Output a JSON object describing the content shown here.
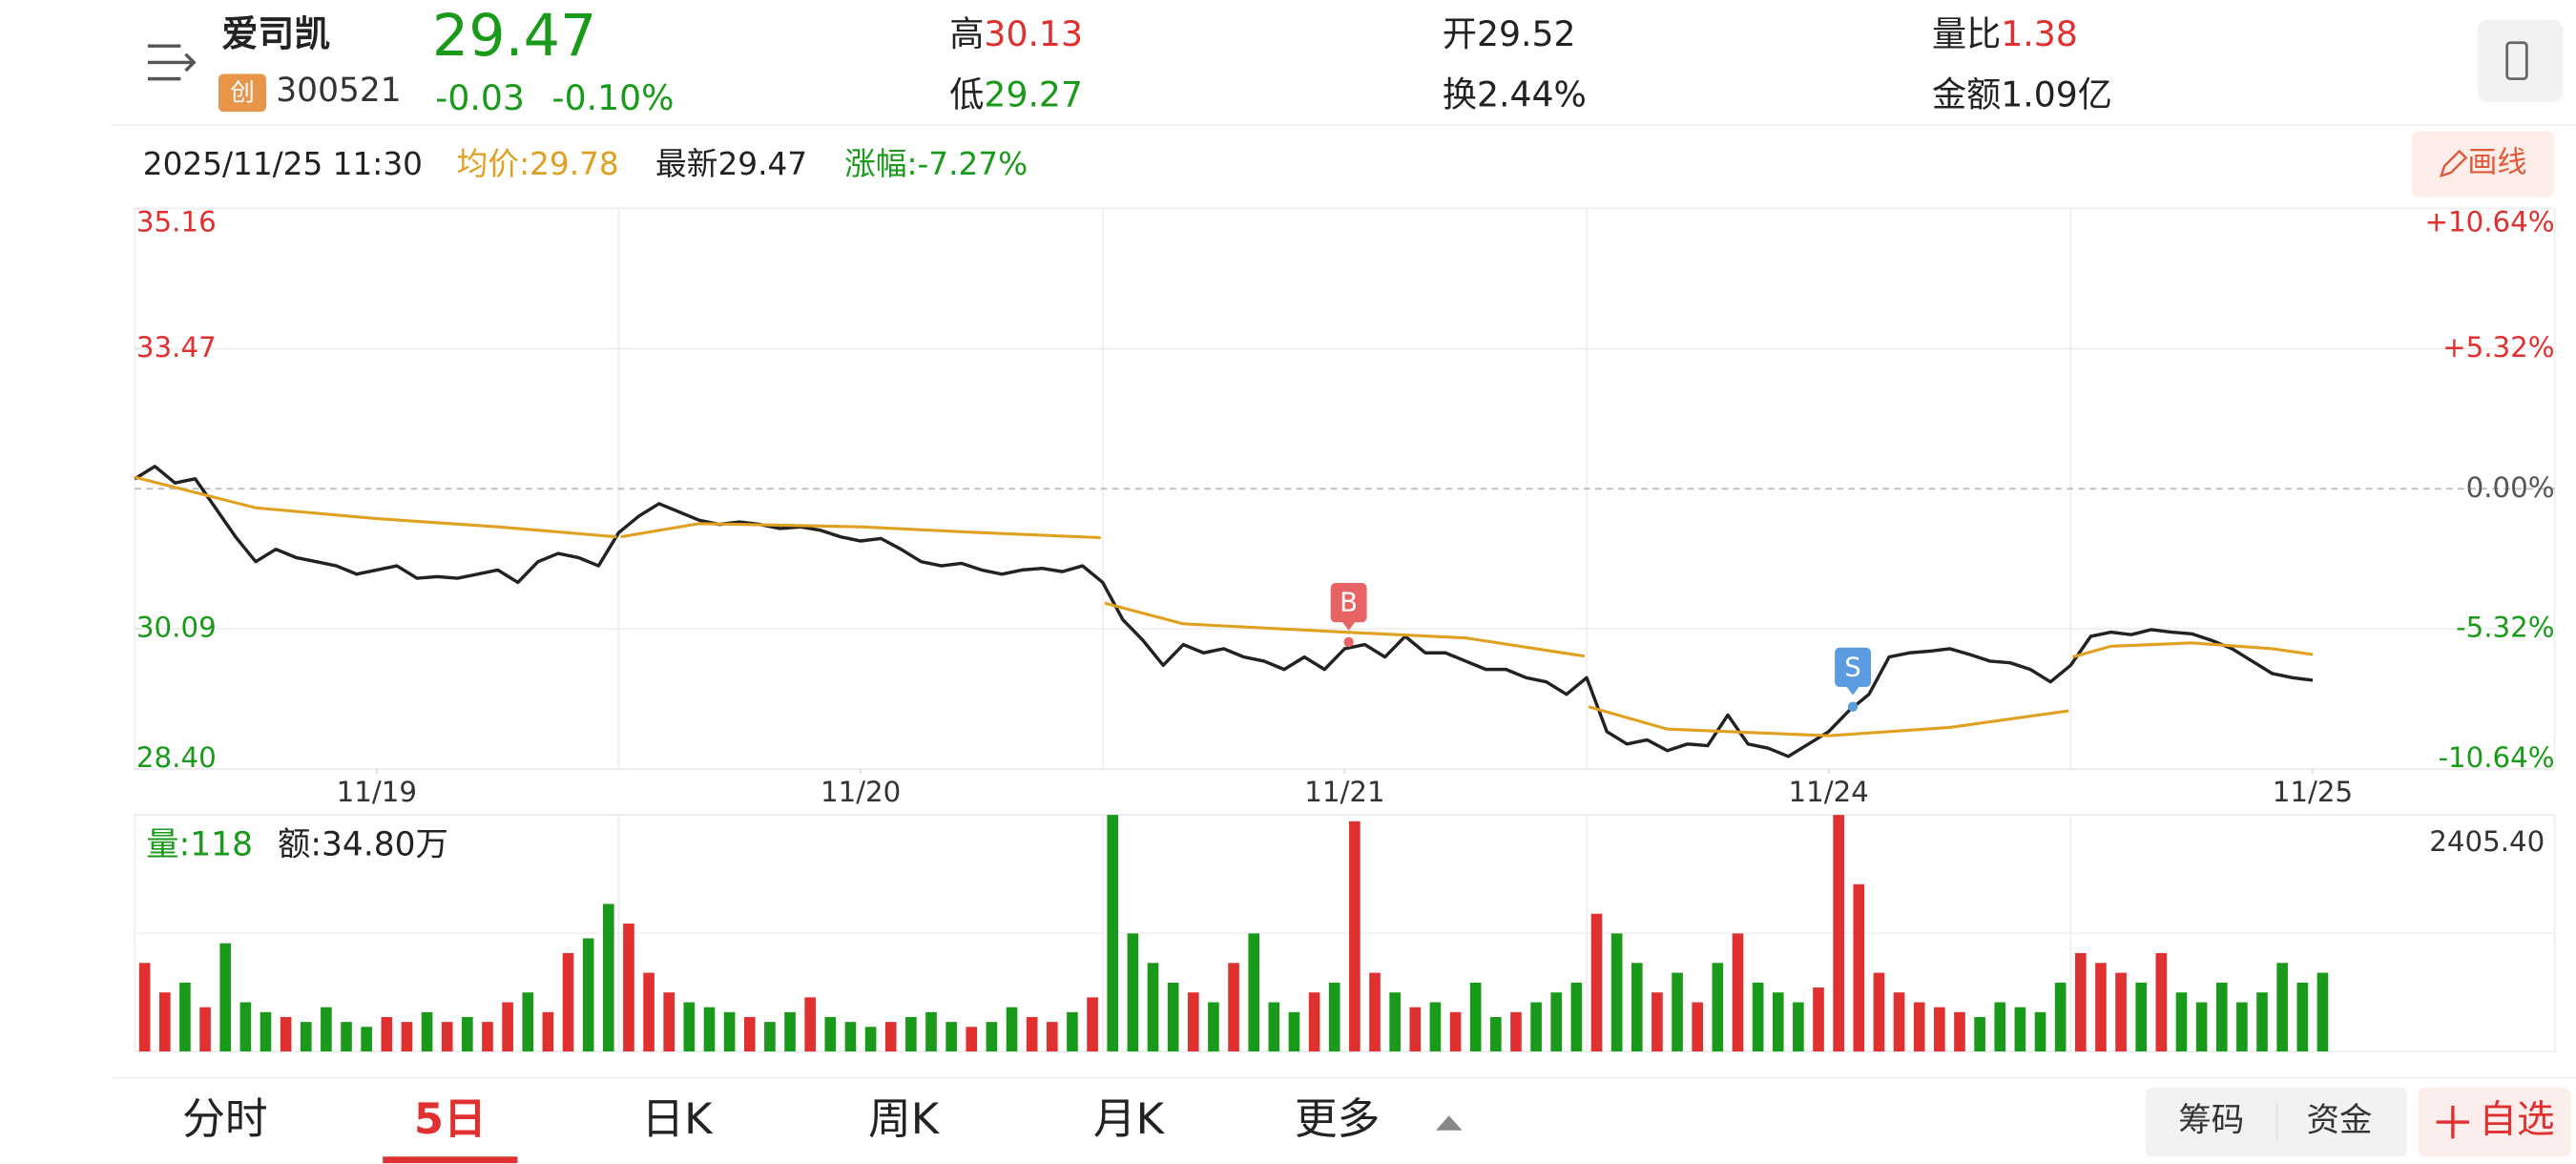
{
  "header": {
    "name": "爱司凯",
    "badge": "创",
    "code": "300521",
    "price": "29.47",
    "change": "-0.03",
    "change_pct": "-0.10%",
    "stats": [
      {
        "label": "高",
        "value": "30.13",
        "color": "#e03030"
      },
      {
        "label": "开",
        "value": "29.52",
        "color": "#222222"
      },
      {
        "label": "量比",
        "value": "1.38",
        "color": "#e03030"
      },
      {
        "label": "低",
        "value": "29.27",
        "color": "#1a9a1a"
      },
      {
        "label": "换",
        "value": "2.44%",
        "color": "#222222"
      },
      {
        "label": "金额",
        "value": "1.09亿",
        "color": "#222222"
      }
    ]
  },
  "info_bar": {
    "datetime": "2025/11/25 11:30",
    "avg": "均价:29.78",
    "latest": "最新29.47",
    "change": "涨幅:-7.27%",
    "draw_button": "画线"
  },
  "chart_data": [
    {
      "type": "line",
      "xlim": [
        0,
        1200
      ],
      "xticks": [
        {
          "value": 120,
          "label": "11/19"
        },
        {
          "value": 360,
          "label": "11/20"
        },
        {
          "value": 600,
          "label": "11/21"
        },
        {
          "value": 840,
          "label": "11/24"
        },
        {
          "value": 1080,
          "label": "11/25"
        }
      ],
      "ylim": [
        28.4,
        35.16
      ],
      "yticks": [
        35.16,
        33.47,
        30.09,
        {
          "value": 28.4,
          "label": "28.40"
        }
      ],
      "y2lim": [
        -10.64,
        10.64
      ],
      "y2ticks": [
        {
          "value": 10.64,
          "label": "+10.64%"
        },
        {
          "value": 5.32,
          "label": "+5.32%"
        },
        {
          "value": 0,
          "label": "0.00%"
        },
        {
          "value": -5.32,
          "label": "-5.32%"
        },
        {
          "value": -10.64,
          "label": "-10.64%"
        }
      ],
      "up_color": "#e03030",
      "down_color": "#1a9a1a",
      "grid": true,
      "x": [
        0,
        10,
        20,
        30,
        40,
        50,
        60,
        70,
        80,
        90,
        100,
        110,
        120,
        130,
        140,
        150,
        160,
        170,
        180,
        190,
        200,
        210,
        220,
        230,
        240,
        250,
        260,
        270,
        280,
        290,
        300,
        310,
        320,
        330,
        340,
        350,
        360,
        370,
        380,
        390,
        400,
        410,
        420,
        430,
        440,
        450,
        460,
        470,
        480,
        490,
        500,
        510,
        520,
        530,
        540,
        550,
        560,
        570,
        580,
        590,
        600,
        610,
        620,
        630,
        640,
        650,
        660,
        670,
        680,
        690,
        700,
        710,
        720,
        730,
        740,
        750,
        760,
        770,
        780,
        790,
        800,
        810,
        820,
        830,
        840,
        850,
        860,
        870,
        880,
        890,
        900,
        910,
        920,
        930,
        940,
        950,
        960,
        970,
        980,
        990,
        1000,
        1010,
        1020,
        1030,
        1040,
        1050,
        1060,
        1070,
        1080
      ],
      "series": [
        {
          "name": "最新",
          "color": "#222222",
          "values": [
            31.9,
            32.05,
            31.85,
            31.9,
            31.55,
            31.2,
            30.9,
            31.05,
            30.95,
            30.9,
            30.85,
            30.75,
            30.8,
            30.85,
            30.7,
            30.72,
            30.7,
            30.75,
            30.8,
            30.65,
            30.9,
            31.0,
            30.95,
            30.85,
            31.25,
            31.45,
            31.6,
            31.5,
            31.4,
            31.35,
            31.38,
            31.35,
            31.3,
            31.32,
            31.28,
            31.2,
            31.15,
            31.18,
            31.05,
            30.9,
            30.85,
            30.88,
            30.8,
            30.75,
            30.8,
            30.82,
            30.78,
            30.85,
            30.65,
            30.2,
            29.95,
            29.65,
            29.9,
            29.8,
            29.85,
            29.75,
            29.7,
            29.6,
            29.75,
            29.6,
            29.85,
            29.9,
            29.75,
            30.0,
            29.8,
            29.8,
            29.7,
            29.6,
            29.6,
            29.5,
            29.45,
            29.3,
            29.5,
            28.85,
            28.7,
            28.75,
            28.62,
            28.7,
            28.68,
            29.05,
            28.7,
            28.65,
            28.55,
            28.7,
            28.85,
            29.1,
            29.3,
            29.75,
            29.8,
            29.82,
            29.85,
            29.78,
            29.7,
            29.68,
            29.6,
            29.45,
            29.65,
            30.0,
            30.05,
            30.02,
            30.08,
            30.05,
            30.03,
            29.95,
            29.85,
            29.7,
            29.55,
            29.5,
            29.47
          ]
        },
        {
          "name": "均价",
          "color": "#e0a020",
          "x": [
            0,
            60,
            120,
            180,
            239,
            240,
            241,
            280,
            360,
            420,
            479,
            480,
            481,
            520,
            600,
            660,
            719,
            720,
            721,
            760,
            840,
            900,
            959,
            960,
            961,
            980,
            1020,
            1060,
            1080
          ],
          "values": [
            31.92,
            31.55,
            31.42,
            31.32,
            31.2,
            null,
            31.2,
            31.36,
            31.32,
            31.25,
            31.19,
            null,
            30.4,
            30.15,
            30.05,
            29.98,
            29.76,
            null,
            29.15,
            28.88,
            28.8,
            28.9,
            29.1,
            null,
            29.75,
            29.88,
            29.92,
            29.85,
            29.78
          ]
        }
      ],
      "annotations": [
        {
          "label": "B",
          "x": 602,
          "y": 29.93,
          "color": "#e86464"
        },
        {
          "label": "S",
          "x": 852,
          "y": 29.15,
          "color": "#5b9be0"
        }
      ]
    },
    {
      "type": "bar",
      "volume_label": "量:118",
      "amount_label": "额:34.80万",
      "xlim": [
        0,
        1200
      ],
      "ylim": [
        0,
        2405.4
      ],
      "yticks": [
        {
          "value": 2405.4,
          "label": "2405.40"
        }
      ],
      "x": [
        0,
        10,
        20,
        30,
        40,
        50,
        60,
        70,
        80,
        90,
        100,
        110,
        120,
        130,
        140,
        150,
        160,
        170,
        180,
        190,
        200,
        210,
        220,
        230,
        240,
        250,
        260,
        270,
        280,
        290,
        300,
        310,
        320,
        330,
        340,
        350,
        360,
        370,
        380,
        390,
        400,
        410,
        420,
        430,
        440,
        450,
        460,
        470,
        480,
        490,
        500,
        510,
        520,
        530,
        540,
        550,
        560,
        570,
        580,
        590,
        600,
        610,
        620,
        630,
        640,
        650,
        660,
        670,
        680,
        690,
        700,
        710,
        720,
        730,
        740,
        750,
        760,
        770,
        780,
        790,
        800,
        810,
        820,
        830,
        840,
        850,
        860,
        870,
        880,
        890,
        900,
        910,
        920,
        930,
        940,
        950,
        960,
        970,
        980,
        990,
        1000,
        1010,
        1020,
        1030,
        1040,
        1050,
        1060,
        1070,
        1080
      ],
      "values": [
        900,
        600,
        700,
        450,
        1100,
        500,
        400,
        350,
        300,
        450,
        300,
        250,
        350,
        300,
        400,
        300,
        350,
        300,
        500,
        600,
        400,
        1000,
        1150,
        1500,
        1300,
        800,
        600,
        500,
        450,
        400,
        350,
        300,
        400,
        550,
        350,
        300,
        250,
        300,
        350,
        400,
        300,
        250,
        300,
        450,
        350,
        300,
        400,
        550,
        2405,
        1200,
        900,
        700,
        600,
        500,
        900,
        1200,
        500,
        400,
        600,
        700,
        2340,
        800,
        600,
        450,
        500,
        400,
        700,
        350,
        400,
        500,
        600,
        700,
        1400,
        1200,
        900,
        600,
        800,
        500,
        900,
        1200,
        700,
        600,
        500,
        650,
        2405,
        1700,
        800,
        600,
        500,
        450,
        400,
        350,
        500,
        450,
        400,
        700,
        1000,
        900,
        800,
        700,
        1000,
        600,
        500,
        700,
        500,
        600,
        900,
        700,
        800
      ]
    }
  ],
  "tabs": [
    "分时",
    "5日",
    "日K",
    "周K",
    "月K",
    "更多"
  ],
  "active_tab": 1,
  "buttons": [
    "筹码",
    "资金"
  ],
  "watch_button": "自选"
}
